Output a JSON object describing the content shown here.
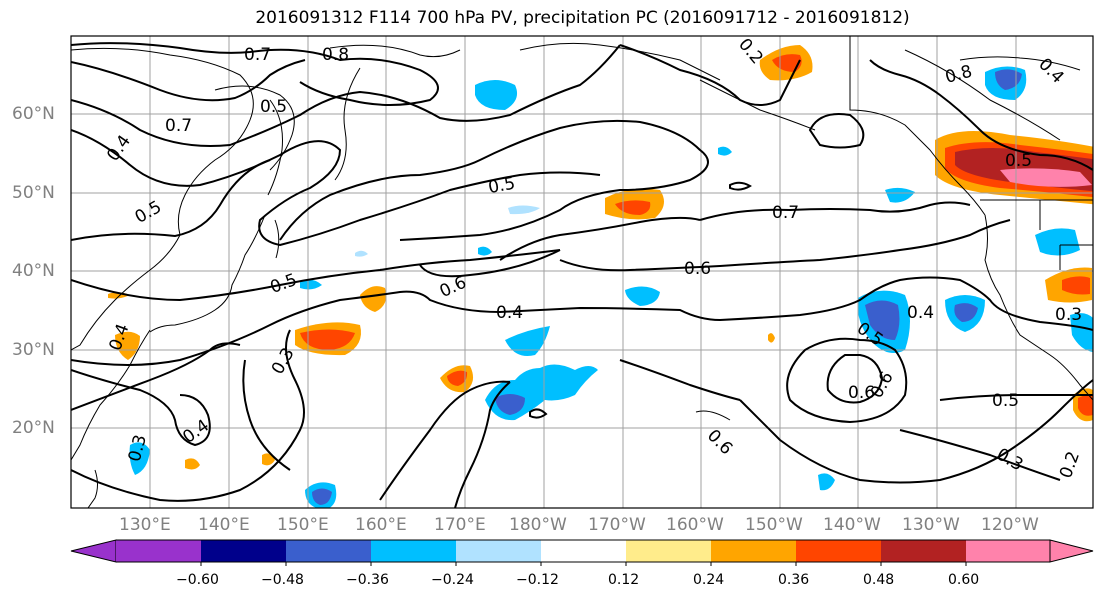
{
  "title": "2016091312 F114 700 hPa PV, precipitation PC (2016091712 - 2016091812)",
  "map": {
    "lat_labels": [
      "60°N",
      "50°N",
      "40°N",
      "30°N",
      "20°N"
    ],
    "lon_labels": [
      "130°E",
      "140°E",
      "150°E",
      "160°E",
      "170°E",
      "180°W",
      "170°W",
      "160°W",
      "150°W",
      "140°W",
      "130°W",
      "120°W"
    ],
    "contour_labels": [
      "0.7",
      "0.8",
      "0.5",
      "0.7",
      "0.4",
      "0.5",
      "0.5",
      "0.5",
      "0.6",
      "0.4",
      "0.3",
      "0.4",
      "0.5",
      "0.6",
      "0.7",
      "0.6",
      "0.5",
      "0.5",
      "0.4",
      "0.3",
      "0.2",
      "0.3",
      "0.2",
      "0.8",
      "0.4",
      "0.6",
      "0.6",
      "0.4",
      "0.3"
    ],
    "land_color": "#ffffff",
    "coastline_color": "#000000",
    "gridline_color": "#a0a0a0"
  },
  "colorbar": {
    "tick_labels": [
      "−0.60",
      "−0.48",
      "−0.36",
      "−0.24",
      "−0.12",
      "0.12",
      "0.24",
      "0.36",
      "0.48",
      "0.60"
    ],
    "colors": [
      "#9932CC",
      "#00008B",
      "#3A5FCD",
      "#00BFFF",
      "#B0E2FF",
      "#FFFFFF",
      "#FFEC8B",
      "#FFA500",
      "#FF4500",
      "#B22222",
      "#FF82AB"
    ]
  }
}
